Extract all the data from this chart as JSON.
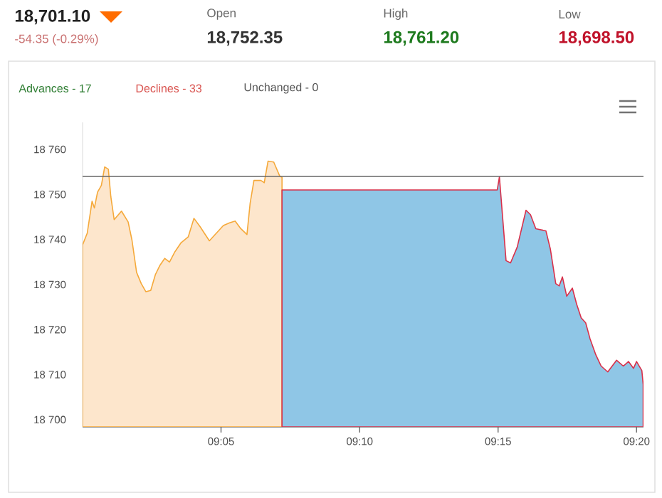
{
  "chart_data": {
    "type": "area",
    "annotations": [
      "18,701.10",
      "-54.35 (-0.29%)",
      "Open",
      "18,752.35",
      "High",
      "18,761.20",
      "Low",
      "18,698.50",
      "Advances - 17",
      "Declines - 33",
      "Unchanged - 0"
    ],
    "series": [
      {
        "color": "#fde6cc",
        "x": [
          9.0,
          9.0028,
          9.0057,
          9.0071,
          9.009,
          9.0113,
          9.0133,
          9.0155,
          9.017,
          9.019,
          9.0234,
          9.0274,
          9.0297,
          9.0325,
          9.0353,
          9.0381,
          9.041,
          9.0438,
          9.0466,
          9.0494,
          9.0523,
          9.0556,
          9.0593,
          9.0636,
          9.067,
          9.0706,
          9.0763,
          9.0805,
          9.0847,
          9.0884,
          9.0918,
          9.0952,
          9.0989,
          9.1008,
          9.1031,
          9.1073,
          9.1093,
          9.1116,
          9.115,
          9.1186,
          9.12
        ],
        "values": [
          18738.8,
          18741.4,
          18748.5,
          18747,
          18750.5,
          18752,
          18756.1,
          18755.6,
          18749.5,
          18744.4,
          18746.3,
          18743.9,
          18739.9,
          18732.7,
          18730.2,
          18728.4,
          18728.7,
          18732.2,
          18734.3,
          18735.8,
          18735,
          18737.3,
          18739.3,
          18740.6,
          18744.7,
          18742.9,
          18739.7,
          18741.4,
          18743.1,
          18743.7,
          18744.1,
          18742.4,
          18741.1,
          18748,
          18753.1,
          18753.1,
          18752.6,
          18757.4,
          18757.2,
          18754.1,
          18753.8
        ]
      },
      {
        "color": "#8fc6e6",
        "x": [
          9.12,
          9.2495,
          9.2508,
          9.2548,
          9.2575,
          9.2615,
          9.2668,
          9.2695,
          9.2727,
          9.2788,
          9.2815,
          9.2847,
          9.2868,
          9.2887,
          9.2913,
          9.2947,
          9.2973,
          9.3,
          9.3027,
          9.3053,
          9.3088,
          9.312,
          9.316,
          9.3213,
          9.3253,
          9.3285,
          9.3315,
          9.3333,
          9.3365,
          9.3373
        ],
        "values": [
          18751.0,
          18751.0,
          18753.9,
          18735.3,
          18734.8,
          18738.3,
          18746.5,
          18745.5,
          18742.4,
          18741.9,
          18737.8,
          18730.2,
          18729.7,
          18731.7,
          18727.4,
          18729.2,
          18725.6,
          18722.6,
          18721.5,
          18718,
          18714.4,
          18711.9,
          18710.6,
          18713.2,
          18711.9,
          18712.9,
          18711.4,
          18712.9,
          18710.9,
          18707.8
        ]
      }
    ],
    "xlim": [
      9.0,
      9.3375
    ],
    "xticks": [
      {
        "value": 9.0833,
        "label": "09:05"
      },
      {
        "value": 9.1667,
        "label": "09:10"
      },
      {
        "value": 9.25,
        "label": "09:15"
      },
      {
        "value": 9.3333,
        "label": "09:20"
      }
    ],
    "ylim": [
      18698.4,
      18766
    ],
    "yticks": [
      {
        "value": 18700,
        "label": "18 700"
      },
      {
        "value": 18710,
        "label": "18 710"
      },
      {
        "value": 18720,
        "label": "18 720"
      },
      {
        "value": 18730,
        "label": "18 730"
      },
      {
        "value": 18740,
        "label": "18 740"
      },
      {
        "value": 18750,
        "label": "18 750"
      },
      {
        "value": 18760,
        "label": "18 760"
      }
    ],
    "ref_lines": [
      {
        "axis": "y",
        "value": 18754,
        "color": "#666666"
      }
    ],
    "grid": false
  }
}
